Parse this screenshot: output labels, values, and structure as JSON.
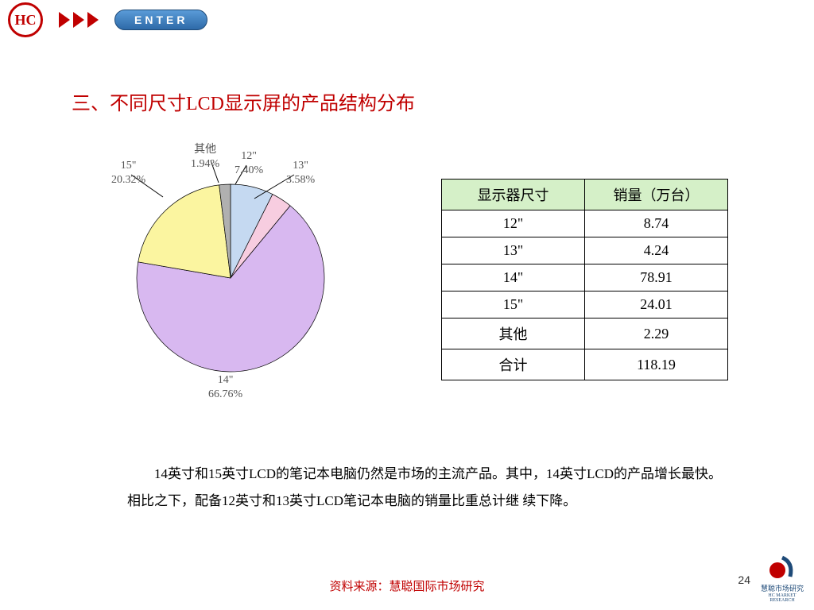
{
  "header": {
    "logo_text": "HC",
    "enter_label": "ENTER"
  },
  "title": "三、不同尺寸LCD显示屏的产品结构分布",
  "pie_chart": {
    "type": "pie",
    "slices": [
      {
        "label": "12\"",
        "percent": 7.4,
        "color": "#c5d9f1"
      },
      {
        "label": "13\"",
        "percent": 3.58,
        "color": "#f7cde0"
      },
      {
        "label": "14\"",
        "percent": 66.76,
        "color": "#d8b8f0"
      },
      {
        "label": "15\"",
        "percent": 20.32,
        "color": "#fbf5a0"
      },
      {
        "label": "其他",
        "percent": 1.94,
        "color": "#b0b0b0"
      }
    ],
    "start_angle_deg": -90,
    "stroke_color": "#000000",
    "stroke_width": 0.7,
    "label_fontsize": 14,
    "label_color": "#555555"
  },
  "labels": {
    "l12": {
      "name": "12\"",
      "pct": "7.40%"
    },
    "l13": {
      "name": "13\"",
      "pct": "3.58%"
    },
    "l14": {
      "name": "14\"",
      "pct": "66.76%"
    },
    "l15": {
      "name": "15\"",
      "pct": "20.32%"
    },
    "lother": {
      "name": "其他",
      "pct": "1.94%"
    }
  },
  "table": {
    "headers": [
      "显示器尺寸",
      "销量（万台）"
    ],
    "header_bg": "#d5f0c8",
    "rows": [
      [
        "12\"",
        "8.74"
      ],
      [
        "13\"",
        "4.24"
      ],
      [
        "14\"",
        "78.91"
      ],
      [
        "15\"",
        "24.01"
      ],
      [
        "其他",
        "2.29"
      ],
      [
        "合计",
        "118.19"
      ]
    ]
  },
  "body_text": "14英寸和15英寸LCD的笔记本电脑仍然是市场的主流产品。其中，14英寸LCD的产品增长最快。相比之下，配备12英寸和13英寸LCD笔记本电脑的销量比重总计继 续下降。",
  "footer": {
    "source": "资料来源：慧聪国际市场研究",
    "page": "24",
    "brand_cn": "慧聪市场研究",
    "brand_en": "HC MARKET RESEARCH"
  }
}
